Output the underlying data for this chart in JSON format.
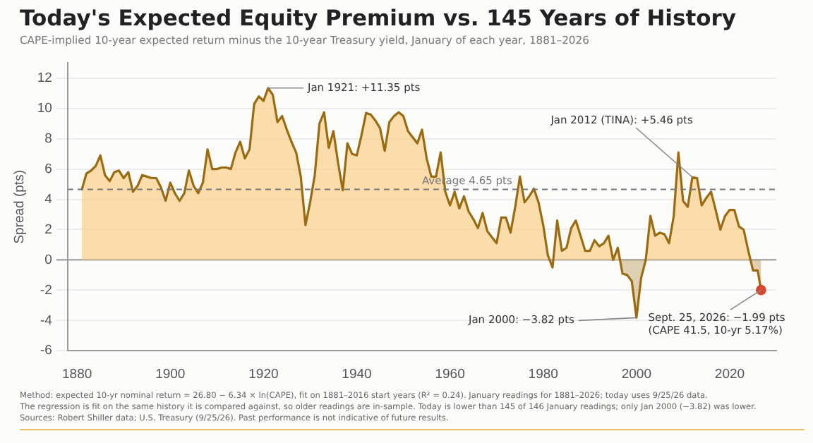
{
  "chart_data": {
    "type": "area",
    "title": "Today's Expected Equity Premium vs. 145 Years of History",
    "subtitle": "CAPE-implied 10-year expected return minus the 10-year Treasury yield, January of each year, 1881–2026",
    "ylabel": "Spread (pts)",
    "xlim": [
      1878,
      2030
    ],
    "xticks": [
      1880,
      1900,
      1920,
      1940,
      1960,
      1980,
      2000,
      2020
    ],
    "ylim": [
      -6,
      13
    ],
    "yticks": [
      -6,
      -4,
      -2,
      0,
      2,
      4,
      6,
      8,
      10,
      12
    ],
    "grid": "y",
    "legend": false,
    "marker": "none",
    "series": [
      {
        "color": "#9b6b12",
        "x": [
          1881,
          1882,
          1883,
          1884,
          1885,
          1886,
          1887,
          1888,
          1889,
          1890,
          1891,
          1892,
          1893,
          1894,
          1895,
          1896,
          1897,
          1898,
          1899,
          1900,
          1901,
          1902,
          1903,
          1904,
          1905,
          1906,
          1907,
          1908,
          1909,
          1910,
          1911,
          1912,
          1913,
          1914,
          1915,
          1916,
          1917,
          1918,
          1919,
          1920,
          1921,
          1922,
          1923,
          1924,
          1925,
          1926,
          1927,
          1928,
          1929,
          1930,
          1931,
          1932,
          1933,
          1934,
          1935,
          1936,
          1937,
          1938,
          1939,
          1940,
          1941,
          1942,
          1943,
          1944,
          1945,
          1946,
          1947,
          1948,
          1949,
          1950,
          1951,
          1952,
          1953,
          1954,
          1955,
          1956,
          1957,
          1958,
          1959,
          1960,
          1961,
          1962,
          1963,
          1964,
          1965,
          1966,
          1967,
          1968,
          1969,
          1970,
          1971,
          1972,
          1973,
          1974,
          1975,
          1976,
          1977,
          1978,
          1979,
          1980,
          1981,
          1982,
          1983,
          1984,
          1985,
          1986,
          1987,
          1988,
          1989,
          1990,
          1991,
          1992,
          1993,
          1994,
          1995,
          1996,
          1997,
          1998,
          1999,
          2000,
          2001,
          2002,
          2003,
          2004,
          2005,
          2006,
          2007,
          2008,
          2009,
          2010,
          2011,
          2012,
          2013,
          2014,
          2015,
          2016,
          2017,
          2018,
          2019,
          2020,
          2021,
          2022,
          2023,
          2024,
          2025,
          2026,
          2026.73
        ],
        "values": [
          4.6,
          5.7,
          5.9,
          6.2,
          6.9,
          5.6,
          5.2,
          5.8,
          5.9,
          5.4,
          5.8,
          4.5,
          4.9,
          5.6,
          5.5,
          5.4,
          5.4,
          4.8,
          3.9,
          5.1,
          4.4,
          3.9,
          4.4,
          5.9,
          4.9,
          4.4,
          5.1,
          7.3,
          6.0,
          6.0,
          6.1,
          6.1,
          6.0,
          7.1,
          7.8,
          6.7,
          7.3,
          10.3,
          10.8,
          10.5,
          11.35,
          10.9,
          9.1,
          9.5,
          8.6,
          7.8,
          7.1,
          5.5,
          2.3,
          3.8,
          5.6,
          9.0,
          9.75,
          7.4,
          8.5,
          6.4,
          4.6,
          7.7,
          7.0,
          6.9,
          8.2,
          9.7,
          9.6,
          9.2,
          8.7,
          7.2,
          9.1,
          9.5,
          9.75,
          9.5,
          8.5,
          8.1,
          7.7,
          8.6,
          6.7,
          5.5,
          5.5,
          7.1,
          4.5,
          3.6,
          4.5,
          3.4,
          4.2,
          3.2,
          2.7,
          2.1,
          3.1,
          1.9,
          1.5,
          1.1,
          2.8,
          2.8,
          1.8,
          3.5,
          5.5,
          3.8,
          4.2,
          4.7,
          3.8,
          2.3,
          0.3,
          -0.5,
          2.6,
          0.6,
          0.8,
          2.1,
          2.6,
          1.6,
          0.6,
          0.6,
          1.3,
          0.9,
          1.1,
          1.6,
          0.0,
          0.8,
          -0.9,
          -1.0,
          -1.4,
          -3.82,
          -1.2,
          0.0,
          2.9,
          1.6,
          1.8,
          1.7,
          1.1,
          2.9,
          7.1,
          3.9,
          3.5,
          5.46,
          5.4,
          3.6,
          4.1,
          4.5,
          3.3,
          2.0,
          2.9,
          3.3,
          3.3,
          2.2,
          2.0,
          0.6,
          -0.7,
          -0.7,
          -1.99
        ]
      },
      {
        "type": "scatter",
        "marker": "circle",
        "color": "#d9482b",
        "x": [
          2026.73
        ],
        "values": [
          -1.99
        ]
      }
    ],
    "ref_lines": [
      {
        "axis": "y",
        "value": 4.65,
        "label": "Average 4.65 pts",
        "color": "#777777",
        "line_style": "dashed"
      }
    ],
    "annotations": [
      {
        "text": "Jan 1921: +11.35 pts",
        "x": 1921,
        "y": 11.35
      },
      {
        "text": "Jan 2012 (TINA): +5.46 pts",
        "x": 2012,
        "y": 5.46
      },
      {
        "text": "Jan 2000: −3.82 pts",
        "x": 2000,
        "y": -3.82
      },
      {
        "text": "Sept. 25, 2026: −1.99 pts\n(CAPE 41.5, 10-yr 5.17%)",
        "x": 2026.73,
        "y": -1.99
      },
      "Method: expected 10-yr nominal return = 26.80 − 6.34 × ln(CAPE), fit on 1881–2016 start years (R² = 0.24). January readings for 1881–2026; today uses 9/25/26 data.",
      "The regression is fit on the same history it is compared against, so older readings are in-sample. Today is lower than 145 of 146 January readings; only Jan 2000 (−3.82) was lower.",
      "Sources: Robert Shiller data; U.S. Treasury (9/25/26). Past performance is not indicative of future results."
    ]
  }
}
